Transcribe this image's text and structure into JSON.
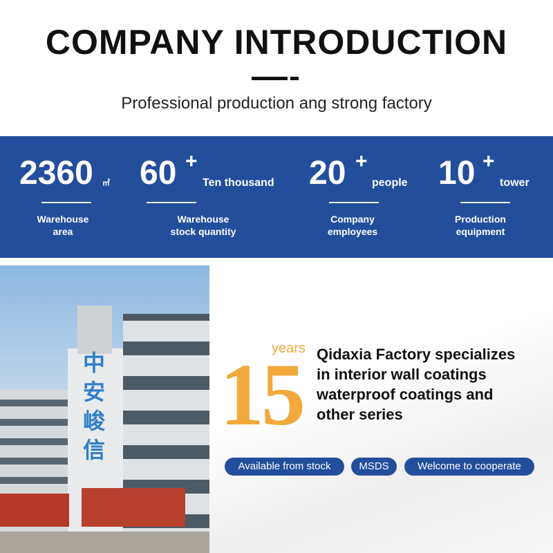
{
  "header": {
    "title": "COMPANY INTRODUCTION",
    "subtitle": "Professional production ang strong factory"
  },
  "stats": [
    {
      "number": "2360",
      "unit": "㎡",
      "label_1": "Warehouse",
      "label_2": "area"
    },
    {
      "number": "60",
      "plus": "+",
      "unit": "Ten thousand",
      "label_1": "Warehouse",
      "label_2": "stock quantity"
    },
    {
      "number": "20",
      "plus": "+",
      "unit": "people",
      "label_1": "Company",
      "label_2": "employees"
    },
    {
      "number": "10",
      "plus": "+",
      "unit": "tower",
      "label_1": "Production",
      "label_2": "equipment"
    }
  ],
  "photo": {
    "building_sign": "中安峻信"
  },
  "intro": {
    "years_number": "15",
    "years_label": "years",
    "lines": [
      "Qidaxia Factory specializes",
      "in interior wall coatings",
      "waterproof coatings and",
      "other series"
    ]
  },
  "tags": [
    "Available from stock",
    "MSDS",
    "Welcome to cooperate"
  ],
  "colors": {
    "brand_blue": "#234e9c",
    "accent_orange": "#f0a93a"
  }
}
